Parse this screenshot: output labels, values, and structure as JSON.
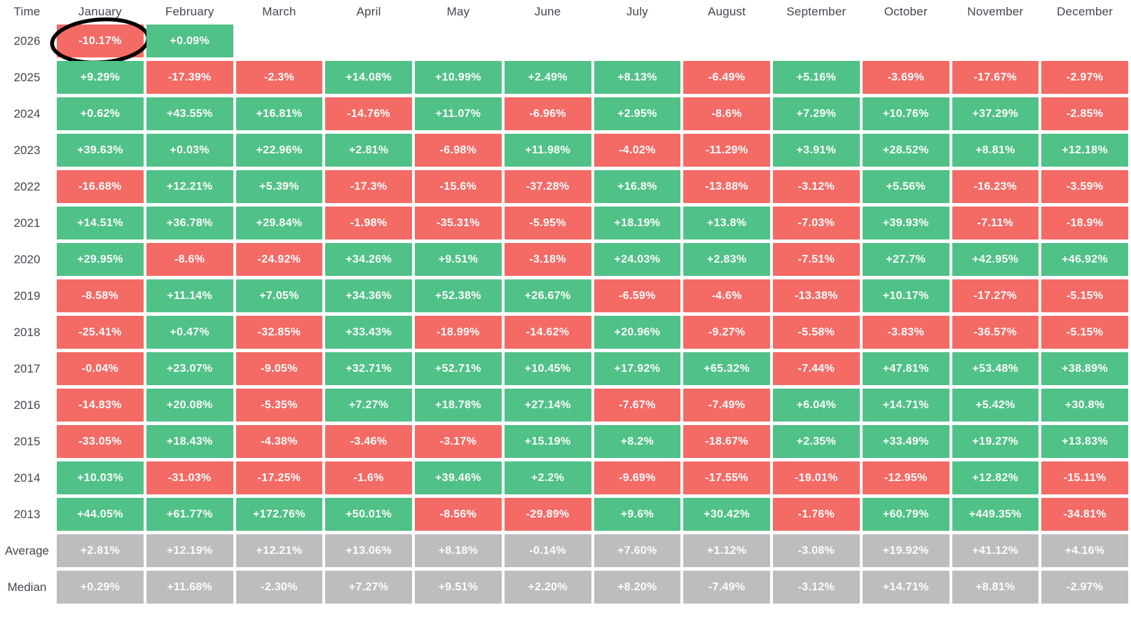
{
  "colors": {
    "positive": "#50c187",
    "negative": "#f46a65",
    "neutral": "#bdbdbd",
    "cell_text": "#fcfdfd",
    "label_text": "#42464e",
    "annotation": "#000000",
    "background": "#ffffff"
  },
  "annotation": {
    "shape": "hand-drawn-ellipse",
    "target_row": "2026",
    "target_column": "January",
    "color": "#000000"
  },
  "chart_data": {
    "type": "heatmap",
    "corner_label": "Time",
    "columns": [
      "January",
      "February",
      "March",
      "April",
      "May",
      "June",
      "July",
      "August",
      "September",
      "October",
      "November",
      "December"
    ],
    "color_rule": "green = positive month, red = negative month, gray = summary rows (Average/Median)",
    "rows": [
      {
        "label": "2026",
        "kind": "year",
        "values": [
          "-10.17%",
          "+0.09%",
          "",
          "",
          "",
          "",
          "",
          "",
          "",
          "",
          "",
          ""
        ],
        "annotated_col": 0
      },
      {
        "label": "2025",
        "kind": "year",
        "values": [
          "+9.29%",
          "-17.39%",
          "-2.3%",
          "+14.08%",
          "+10.99%",
          "+2.49%",
          "+8.13%",
          "-6.49%",
          "+5.16%",
          "-3.69%",
          "-17.67%",
          "-2.97%"
        ]
      },
      {
        "label": "2024",
        "kind": "year",
        "values": [
          "+0.62%",
          "+43.55%",
          "+16.81%",
          "-14.76%",
          "+11.07%",
          "-6.96%",
          "+2.95%",
          "-8.6%",
          "+7.29%",
          "+10.76%",
          "+37.29%",
          "-2.85%"
        ]
      },
      {
        "label": "2023",
        "kind": "year",
        "values": [
          "+39.63%",
          "+0.03%",
          "+22.96%",
          "+2.81%",
          "-6.98%",
          "+11.98%",
          "-4.02%",
          "-11.29%",
          "+3.91%",
          "+28.52%",
          "+8.81%",
          "+12.18%"
        ]
      },
      {
        "label": "2022",
        "kind": "year",
        "values": [
          "-16.68%",
          "+12.21%",
          "+5.39%",
          "-17.3%",
          "-15.6%",
          "-37.28%",
          "+16.8%",
          "-13.88%",
          "-3.12%",
          "+5.56%",
          "-16.23%",
          "-3.59%"
        ]
      },
      {
        "label": "2021",
        "kind": "year",
        "values": [
          "+14.51%",
          "+36.78%",
          "+29.84%",
          "-1.98%",
          "-35.31%",
          "-5.95%",
          "+18.19%",
          "+13.8%",
          "-7.03%",
          "+39.93%",
          "-7.11%",
          "-18.9%"
        ]
      },
      {
        "label": "2020",
        "kind": "year",
        "values": [
          "+29.95%",
          "-8.6%",
          "-24.92%",
          "+34.26%",
          "+9.51%",
          "-3.18%",
          "+24.03%",
          "+2.83%",
          "-7.51%",
          "+27.7%",
          "+42.95%",
          "+46.92%"
        ]
      },
      {
        "label": "2019",
        "kind": "year",
        "values": [
          "-8.58%",
          "+11.14%",
          "+7.05%",
          "+34.36%",
          "+52.38%",
          "+26.67%",
          "-6.59%",
          "-4.6%",
          "-13.38%",
          "+10.17%",
          "-17.27%",
          "-5.15%"
        ]
      },
      {
        "label": "2018",
        "kind": "year",
        "values": [
          "-25.41%",
          "+0.47%",
          "-32.85%",
          "+33.43%",
          "-18.99%",
          "-14.62%",
          "+20.96%",
          "-9.27%",
          "-5.58%",
          "-3.83%",
          "-36.57%",
          "-5.15%"
        ]
      },
      {
        "label": "2017",
        "kind": "year",
        "values": [
          "-0.04%",
          "+23.07%",
          "-9.05%",
          "+32.71%",
          "+52.71%",
          "+10.45%",
          "+17.92%",
          "+65.32%",
          "-7.44%",
          "+47.81%",
          "+53.48%",
          "+38.89%"
        ]
      },
      {
        "label": "2016",
        "kind": "year",
        "values": [
          "-14.83%",
          "+20.08%",
          "-5.35%",
          "+7.27%",
          "+18.78%",
          "+27.14%",
          "-7.67%",
          "-7.49%",
          "+6.04%",
          "+14.71%",
          "+5.42%",
          "+30.8%"
        ]
      },
      {
        "label": "2015",
        "kind": "year",
        "values": [
          "-33.05%",
          "+18.43%",
          "-4.38%",
          "-3.46%",
          "-3.17%",
          "+15.19%",
          "+8.2%",
          "-18.67%",
          "+2.35%",
          "+33.49%",
          "+19.27%",
          "+13.83%"
        ]
      },
      {
        "label": "2014",
        "kind": "year",
        "values": [
          "+10.03%",
          "-31.03%",
          "-17.25%",
          "-1.6%",
          "+39.46%",
          "+2.2%",
          "-9.69%",
          "-17.55%",
          "-19.01%",
          "-12.95%",
          "+12.82%",
          "-15.11%"
        ]
      },
      {
        "label": "2013",
        "kind": "year",
        "values": [
          "+44.05%",
          "+61.77%",
          "+172.76%",
          "+50.01%",
          "-8.56%",
          "-29.89%",
          "+9.6%",
          "+30.42%",
          "-1.76%",
          "+60.79%",
          "+449.35%",
          "-34.81%"
        ]
      },
      {
        "label": "Average",
        "kind": "summary",
        "values": [
          "+2.81%",
          "+12.19%",
          "+12.21%",
          "+13.06%",
          "+8.18%",
          "-0.14%",
          "+7.60%",
          "+1.12%",
          "-3.08%",
          "+19.92%",
          "+41.12%",
          "+4.16%"
        ]
      },
      {
        "label": "Median",
        "kind": "summary",
        "values": [
          "+0.29%",
          "+11.68%",
          "-2.30%",
          "+7.27%",
          "+9.51%",
          "+2.20%",
          "+8.20%",
          "-7.49%",
          "-3.12%",
          "+14.71%",
          "+8.81%",
          "-2.97%"
        ]
      }
    ]
  }
}
